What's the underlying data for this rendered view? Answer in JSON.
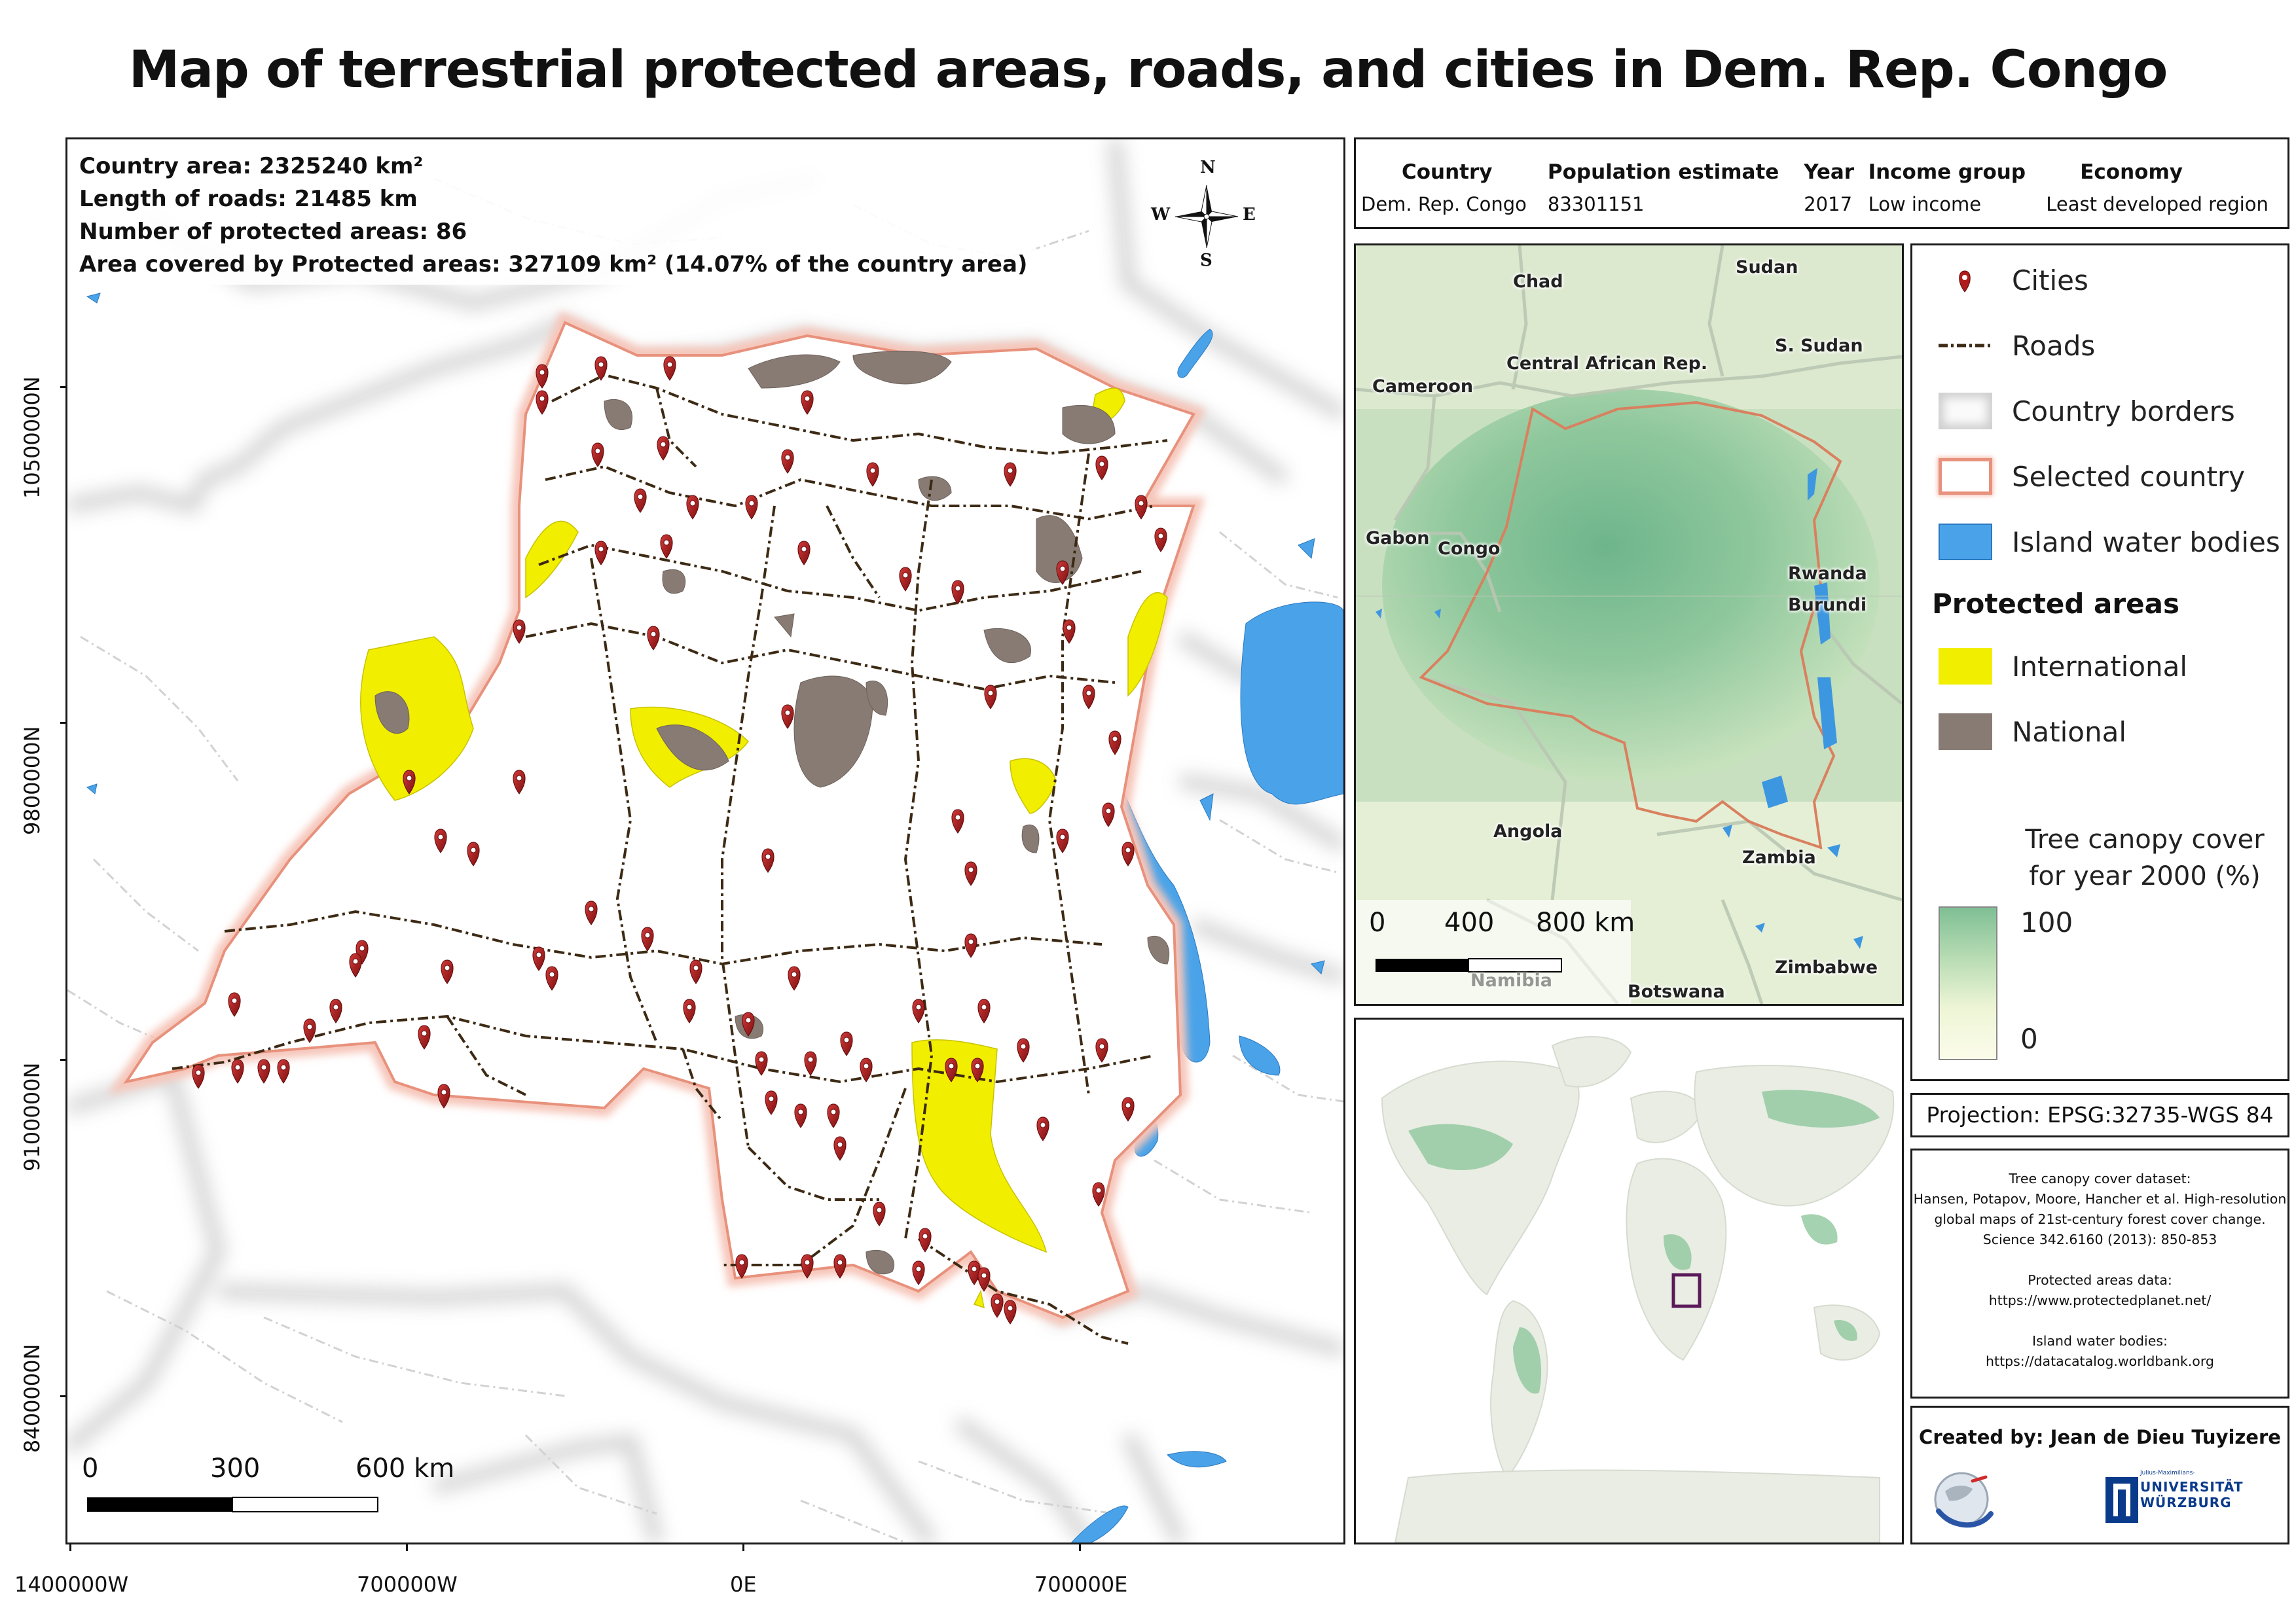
{
  "title": "Map of terrestrial protected areas, roads, and cities in Dem. Rep. Congo",
  "stats": {
    "country_area": "Country area: 2325240 km²",
    "roads_length": "Length of roads: 21485 km",
    "protected_count": "Number of protected areas: 86",
    "protected_area": "Area covered by Protected areas: 327109 km² (14.07% of the country area)"
  },
  "compass": {
    "n": "N",
    "s": "S",
    "e": "E",
    "w": "W"
  },
  "main_map": {
    "y_ticks": [
      "10500000N",
      "9800000N",
      "9100000N",
      "8400000N"
    ],
    "x_ticks": [
      "1400000W",
      "700000W",
      "0E",
      "700000E"
    ],
    "scale_labels": [
      "0",
      "300",
      "600 km"
    ]
  },
  "info_table": {
    "headers": [
      "Country",
      "Population estimate",
      "Year",
      "Income group",
      "Economy"
    ],
    "row": [
      "Dem. Rep. Congo",
      "83301151",
      "2017",
      "Low income",
      "Least developed region"
    ]
  },
  "africa_inset": {
    "labels": [
      "Chad",
      "Sudan",
      "Central African Rep.",
      "S. Sudan",
      "Cameroon",
      "Gabon",
      "Congo",
      "Rwanda",
      "Burundi",
      "Angola",
      "Zambia",
      "Zimbabwe",
      "Namibia",
      "Botswana"
    ],
    "scale_labels": [
      "0",
      "400",
      "800 km"
    ]
  },
  "legend": {
    "cities": "Cities",
    "roads": "Roads",
    "country_borders": "Country borders",
    "selected_country": "Selected country",
    "water": "Island water bodies",
    "protected_title": "Protected areas",
    "international": "International",
    "national": "National",
    "tree_cover_title": "Tree canopy cover for year 2000 (%)",
    "tree_cover_max": "100",
    "tree_cover_min": "0"
  },
  "projection": "Projection: EPSG:32735-WGS 84",
  "sources": [
    "Tree canopy cover dataset:",
    "Hansen, Potapov, Moore, Hancher et al. High-resolution",
    "global maps of 21st-century forest cover change.",
    "Science 342.6160 (2013): 850-853",
    "",
    "Protected areas data:",
    "https://www.protectedplanet.net/",
    "",
    "Island water bodies:",
    "https://datacatalog.worldbank.org"
  ],
  "credits": {
    "label": "Created by: Jean de Dieu Tuyizere",
    "uni_top": "Julius-Maximilians-",
    "uni_name1": "UNIVERSITÄT",
    "uni_name2": "WÜRZBURG"
  },
  "colors": {
    "selected_border": "#e8917c",
    "international": "#f2ee00",
    "national": "#877b73",
    "water": "#4aa3e8",
    "road": "#3d2a14",
    "city": "#b01c1c",
    "canopy_high": "#7fbf94",
    "canopy_low": "#fbfcea",
    "world_box": "#5a1a5a"
  }
}
